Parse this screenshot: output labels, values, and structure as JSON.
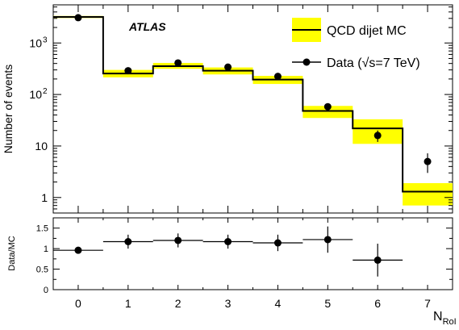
{
  "chart_data": {
    "type": "histogram-with-ratio",
    "experiment_label": "ATLAS",
    "xlabel": "N",
    "xlabel_sub": "RoI",
    "x_ticks": [
      0,
      1,
      2,
      3,
      4,
      5,
      6,
      7
    ],
    "xlim": [
      -0.5,
      7.5
    ],
    "main": {
      "ylabel": "Number of events",
      "yscale": "log",
      "ylim": [
        0.5,
        5500
      ],
      "y_ticks": [
        {
          "value": 1,
          "label": "1"
        },
        {
          "value": 10,
          "label": "10"
        },
        {
          "value": 100,
          "label": "10",
          "exp": "2"
        },
        {
          "value": 1000,
          "label": "10",
          "exp": "3"
        }
      ],
      "mc": {
        "name": "QCD dijet MC",
        "band_color": "#ffff00",
        "bins": [
          {
            "x": 0,
            "value": 3200,
            "low": 3050,
            "high": 3350
          },
          {
            "x": 1,
            "value": 255,
            "low": 215,
            "high": 300
          },
          {
            "x": 2,
            "value": 355,
            "low": 315,
            "high": 410
          },
          {
            "x": 3,
            "value": 290,
            "low": 245,
            "high": 335
          },
          {
            "x": 4,
            "value": 195,
            "low": 160,
            "high": 230
          },
          {
            "x": 5,
            "value": 48,
            "low": 35,
            "high": 60
          },
          {
            "x": 6,
            "value": 22,
            "low": 11,
            "high": 33
          },
          {
            "x": 7,
            "value": 1.3,
            "low": 0.7,
            "high": 1.9
          }
        ]
      },
      "data": {
        "name": "Data (√s=7 TeV)",
        "points": [
          {
            "x": 0,
            "y": 3100,
            "err_low": 60,
            "err_high": 60
          },
          {
            "x": 1,
            "y": 290,
            "err_low": 17,
            "err_high": 17
          },
          {
            "x": 2,
            "y": 410,
            "err_low": 20,
            "err_high": 20
          },
          {
            "x": 3,
            "y": 340,
            "err_low": 18,
            "err_high": 18
          },
          {
            "x": 4,
            "y": 225,
            "err_low": 15,
            "err_high": 15
          },
          {
            "x": 5,
            "y": 58,
            "err_low": 8,
            "err_high": 8
          },
          {
            "x": 6,
            "y": 16,
            "err_low": 4,
            "err_high": 4
          },
          {
            "x": 7,
            "y": 5,
            "err_low": 2,
            "err_high": 2.2
          }
        ]
      },
      "legend_position": "top-right"
    },
    "ratio": {
      "ylabel": "Data/MC",
      "ylim": [
        0,
        1.75
      ],
      "y_ticks": [
        {
          "value": 0,
          "label": "0"
        },
        {
          "value": 0.5,
          "label": "0.5"
        },
        {
          "value": 1,
          "label": "1"
        },
        {
          "value": 1.5,
          "label": "1.5"
        }
      ],
      "points": [
        {
          "x": 0,
          "y": 0.96,
          "err": 0.02
        },
        {
          "x": 1,
          "y": 1.17,
          "err": 0.17
        },
        {
          "x": 2,
          "y": 1.2,
          "err": 0.17
        },
        {
          "x": 3,
          "y": 1.17,
          "err": 0.17
        },
        {
          "x": 4,
          "y": 1.14,
          "err": 0.2
        },
        {
          "x": 5,
          "y": 1.22,
          "err": 0.32
        },
        {
          "x": 6,
          "y": 0.72,
          "err": 0.4
        }
      ]
    }
  }
}
